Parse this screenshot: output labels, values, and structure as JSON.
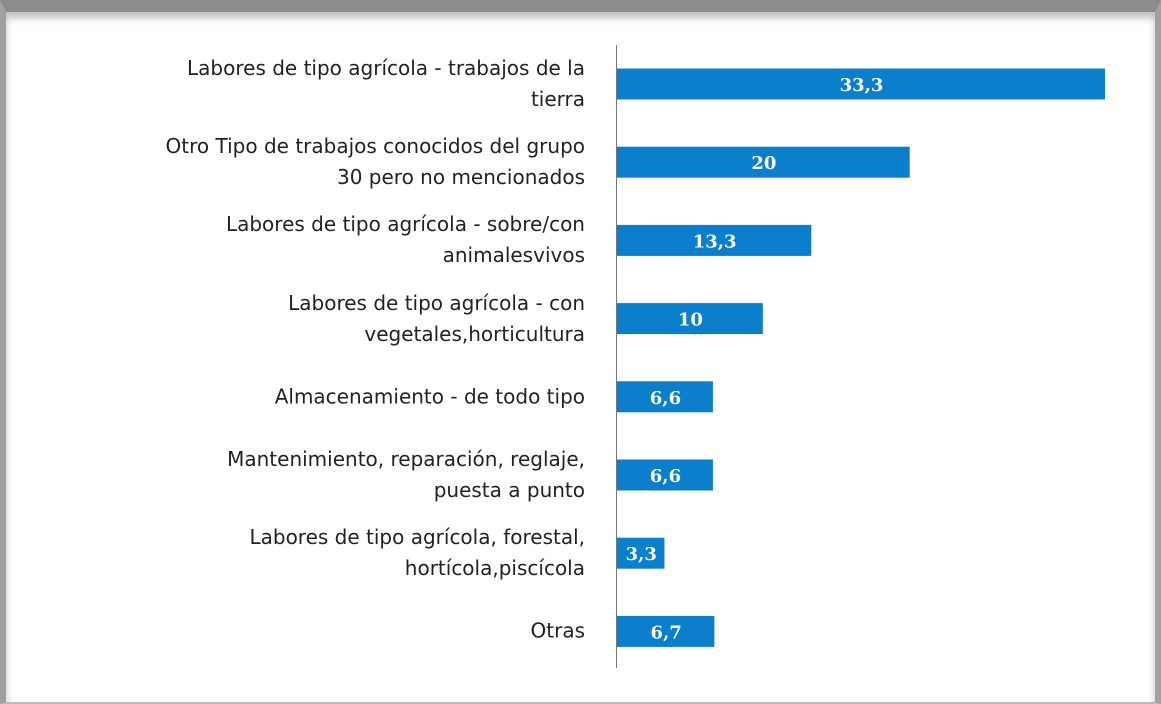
{
  "chart_data": {
    "type": "bar",
    "orientation": "horizontal",
    "color": "#0b7fcb",
    "categories": [
      "Labores de tipo agrícola - trabajos de la\ntierra",
      "Otro Tipo de trabajos conocidos del grupo\n30 pero no mencionados",
      "Labores de tipo agrícola - sobre/con\nanimalesvivos",
      "Labores de tipo agrícola - con\nvegetales,horticultura",
      "Almacenamiento - de todo tipo",
      "Mantenimiento, reparación, reglaje,\npuesta a punto",
      "Labores de tipo agrícola, forestal,\nhortícola,piscícola",
      "Otras"
    ],
    "values": [
      33.3,
      20,
      13.3,
      10,
      6.6,
      6.6,
      3.3,
      6.7
    ],
    "value_labels": [
      "33,3",
      "20",
      "13,3",
      "10",
      "6,6",
      "6,6",
      "3,3",
      "6,7"
    ]
  }
}
